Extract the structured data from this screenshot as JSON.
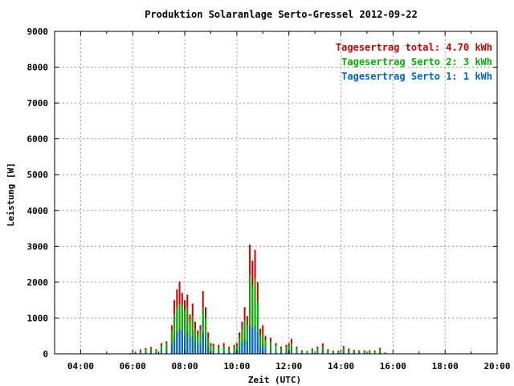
{
  "chart_data": {
    "type": "bar",
    "title": "Produktion Solaranlage Serto-Gressel 2012-09-22",
    "xlabel": "Zeit (UTC)",
    "ylabel": "Leistung [W]",
    "xlim": [
      3.0,
      20.0
    ],
    "ylim": [
      0,
      9000
    ],
    "grid": true,
    "legend_position": "top-right",
    "x_ticks": [
      {
        "pos": 4,
        "label": "04:00"
      },
      {
        "pos": 6,
        "label": "06:00"
      },
      {
        "pos": 8,
        "label": "08:00"
      },
      {
        "pos": 10,
        "label": "10:00"
      },
      {
        "pos": 12,
        "label": "12:00"
      },
      {
        "pos": 14,
        "label": "14:00"
      },
      {
        "pos": 16,
        "label": "16:00"
      },
      {
        "pos": 18,
        "label": "18:00"
      },
      {
        "pos": 20,
        "label": "20:00"
      }
    ],
    "y_ticks": [
      0,
      1000,
      2000,
      3000,
      4000,
      5000,
      6000,
      7000,
      8000,
      9000
    ],
    "colors": {
      "total": "#cc0000",
      "serto2": "#00b000",
      "serto1": "#0066cc"
    },
    "legend": [
      {
        "key": "total",
        "label": "Tagesertrag total: 4.70 kWh"
      },
      {
        "key": "serto2",
        "label": "Tagesertrag Serto 2: 3 kWh"
      },
      {
        "key": "serto1",
        "label": "Tagesertrag Serto 1: 1 kWh"
      }
    ],
    "series": [
      {
        "key": "total",
        "x": [
          5.9,
          6.1,
          6.3,
          6.5,
          6.7,
          6.9,
          7.1,
          7.3,
          7.5,
          7.6,
          7.7,
          7.8,
          7.9,
          8.0,
          8.1,
          8.2,
          8.3,
          8.4,
          8.5,
          8.6,
          8.7,
          8.8,
          8.9,
          9.0,
          9.1,
          9.3,
          9.5,
          9.7,
          9.9,
          10.0,
          10.1,
          10.2,
          10.3,
          10.4,
          10.5,
          10.6,
          10.7,
          10.8,
          10.9,
          11.0,
          11.1,
          11.3,
          11.5,
          11.7,
          11.9,
          12.0,
          12.1,
          12.3,
          12.5,
          12.7,
          12.9,
          13.1,
          13.3,
          13.5,
          13.7,
          13.9,
          14.1,
          14.3,
          14.5,
          14.7,
          14.9,
          15.1,
          15.3,
          15.5,
          15.7,
          15.9
        ],
        "values": [
          20,
          60,
          120,
          160,
          190,
          130,
          300,
          350,
          800,
          1500,
          1800,
          2020,
          1700,
          1500,
          1650,
          1100,
          1400,
          900,
          650,
          800,
          1750,
          1300,
          600,
          300,
          280,
          250,
          300,
          200,
          250,
          300,
          600,
          900,
          1300,
          1050,
          3050,
          2600,
          2900,
          2000,
          700,
          800,
          500,
          450,
          300,
          200,
          250,
          300,
          420,
          200,
          100,
          80,
          150,
          200,
          290,
          130,
          90,
          90,
          220,
          150,
          110,
          100,
          100,
          100,
          90,
          170,
          40,
          10
        ]
      },
      {
        "key": "serto2",
        "x": [
          5.9,
          6.1,
          6.3,
          6.5,
          6.7,
          6.9,
          7.1,
          7.3,
          7.5,
          7.6,
          7.7,
          7.8,
          7.9,
          8.0,
          8.1,
          8.2,
          8.3,
          8.4,
          8.5,
          8.6,
          8.7,
          8.8,
          8.9,
          9.0,
          9.1,
          9.3,
          9.5,
          9.7,
          9.9,
          10.0,
          10.1,
          10.2,
          10.3,
          10.4,
          10.5,
          10.6,
          10.7,
          10.8,
          10.9,
          11.0,
          11.1,
          11.3,
          11.5,
          11.7,
          11.9,
          12.0,
          12.1,
          12.3,
          12.5,
          12.7,
          12.9,
          13.1,
          13.3,
          13.5,
          13.7,
          13.9,
          14.1,
          14.3,
          14.5,
          14.7,
          14.9,
          15.1,
          15.3,
          15.5,
          15.7,
          15.9
        ],
        "values": [
          15,
          45,
          90,
          120,
          150,
          100,
          220,
          280,
          650,
          1100,
          1300,
          1400,
          1350,
          1200,
          1300,
          900,
          1050,
          700,
          500,
          650,
          1300,
          1000,
          450,
          230,
          200,
          190,
          220,
          150,
          190,
          230,
          450,
          700,
          950,
          800,
          2200,
          1900,
          2100,
          1450,
          520,
          600,
          380,
          340,
          230,
          150,
          190,
          230,
          300,
          150,
          75,
          60,
          110,
          150,
          210,
          100,
          70,
          70,
          170,
          110,
          80,
          75,
          75,
          75,
          70,
          130,
          30,
          8
        ]
      },
      {
        "key": "serto1",
        "x": [
          5.9,
          6.1,
          6.3,
          6.5,
          6.7,
          6.9,
          7.1,
          7.3,
          7.5,
          7.6,
          7.7,
          7.8,
          7.9,
          8.0,
          8.1,
          8.2,
          8.3,
          8.4,
          8.5,
          8.6,
          8.7,
          8.8,
          8.9,
          9.0,
          9.1,
          9.3,
          9.5,
          9.7,
          9.9,
          10.0,
          10.1,
          10.2,
          10.3,
          10.4,
          10.5,
          10.6,
          10.7,
          10.8,
          10.9,
          11.0,
          11.1,
          11.3,
          11.5,
          11.7,
          11.9,
          12.0,
          12.1,
          12.3,
          12.5,
          12.7,
          12.9,
          13.1,
          13.3,
          13.5,
          13.7,
          13.9,
          14.1,
          14.3,
          14.5,
          14.7,
          14.9,
          15.1,
          15.3,
          15.5,
          15.7,
          15.9
        ],
        "values": [
          5,
          15,
          30,
          40,
          50,
          35,
          80,
          100,
          250,
          400,
          600,
          700,
          650,
          500,
          600,
          450,
          500,
          350,
          250,
          300,
          600,
          450,
          200,
          80,
          70,
          60,
          70,
          50,
          60,
          80,
          150,
          300,
          400,
          350,
          800,
          700,
          800,
          600,
          200,
          250,
          150,
          120,
          80,
          50,
          60,
          80,
          120,
          50,
          25,
          20,
          40,
          50,
          80,
          35,
          25,
          25,
          60,
          40,
          30,
          25,
          25,
          25,
          20,
          45,
          10,
          3
        ]
      }
    ]
  }
}
